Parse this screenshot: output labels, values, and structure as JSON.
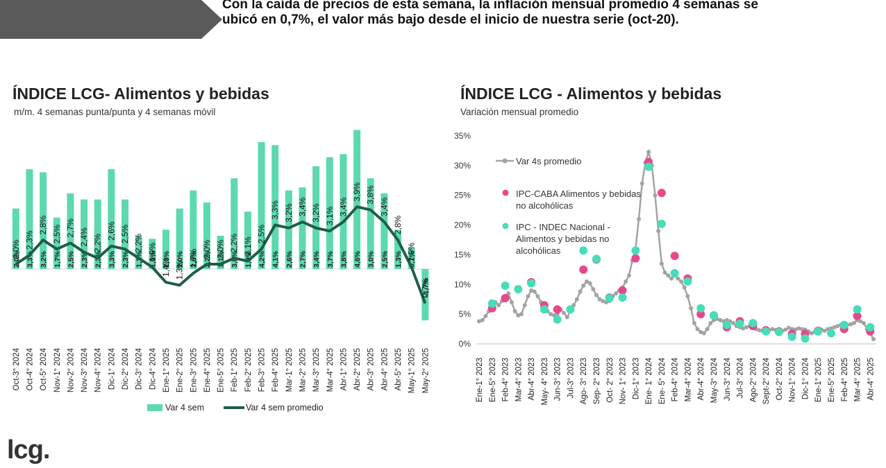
{
  "headline": "Con la caída de precios de esta semana, la inflación mensual promedio 4 semanas se ubicó en 0,7%, el valor más bajo desde el inicio de nuestra serie (oct-20).",
  "logo": "lcg.",
  "colors": {
    "bar": "#5dd9b0",
    "line": "#1e5e46",
    "gray": "#a3a3a3",
    "pink": "#e8488a",
    "teal": "#46ddb8",
    "banner": "#595959"
  },
  "chart_data": [
    {
      "type": "bar",
      "title": "ÍNDICE LCG- Alimentos y bebidas",
      "subtitle": "m/m. 4 semanas punta/punta y 4 semanas móvil",
      "categories": [
        "Oct-3° 2024",
        "Oct-4° 2024",
        "Oct-5° 2024",
        "Nov-1° 2024",
        "Nov-2° 2024",
        "Nov-3° 2024",
        "Nov-4° 2024",
        "Dic-1° 2024",
        "Dic-2° 2024",
        "Dic-3° 2024",
        "Dic-4° 2024",
        "Ene-1° 2025",
        "Ene-2° 2025",
        "Ene-3° 2025",
        "Ene-4° 2025",
        "Ene-5° 2025",
        "Feb-1° 2025",
        "Feb-2° 2025",
        "Feb-3° 2025",
        "Feb-4° 2025",
        "Mar-1° 2025",
        "Mar-2° 2025",
        "Mar-3° 2025",
        "Mar-4° 2025",
        "Abr-1° 2025",
        "Abr-2° 2025",
        "Abr-3° 2025",
        "Abr-4° 2025",
        "Abr-5° 2025",
        "May-1° 2025",
        "May-2° 2025"
      ],
      "series": [
        {
          "name": "Var 4 sem",
          "kind": "bar",
          "values": [
            2.0,
            3.3,
            3.2,
            1.7,
            2.5,
            2.3,
            2.3,
            3.3,
            2.3,
            1.1,
            1.0,
            1.3,
            2.0,
            2.6,
            2.2,
            1.1,
            3.0,
            1.9,
            4.2,
            4.1,
            2.6,
            2.7,
            3.4,
            3.7,
            3.8,
            4.6,
            3.0,
            2.5,
            1.3,
            0.7,
            -1.7
          ],
          "labels": [
            "2,0%",
            "3,3%",
            "3,2%",
            "1,7%",
            "2,5%",
            "2,3%",
            "2,3%",
            "3,3%",
            "2,3%",
            "1,1%",
            "1,0%",
            "1,3%",
            "2,0%",
            "2,6%",
            "2,2%",
            "1,1%",
            "3,0%",
            "1,9%",
            "4,2%",
            "4,1%",
            "2,6%",
            "2,7%",
            "3,4%",
            "3,7%",
            "3,8%",
            "4,6%",
            "3,0%",
            "2,5%",
            "1,3%",
            "0,7%",
            "-1,7%"
          ]
        },
        {
          "name": "Var 4 sem promedio",
          "kind": "line",
          "values": [
            2.0,
            2.3,
            2.8,
            2.5,
            2.7,
            2.4,
            2.2,
            2.6,
            2.5,
            2.2,
            1.9,
            1.4,
            1.3,
            1.7,
            2.0,
            2.0,
            2.2,
            2.1,
            2.5,
            3.3,
            3.2,
            3.4,
            3.2,
            3.1,
            3.4,
            3.9,
            3.8,
            3.4,
            2.8,
            1.9,
            0.7
          ],
          "labels": [
            "2,0%",
            "2,3%",
            "2,8%",
            "2,5%",
            "2,7%",
            "2,4%",
            "2,2%",
            "2,6%",
            "2,5%",
            "2,2%",
            "1,9%",
            "1,4%",
            "1,3%",
            "1,7%",
            "2,0%",
            "2,0%",
            "2,2%",
            "2,1%",
            "2,5%",
            "3,3%",
            "3,2%",
            "3,4%",
            "3,2%",
            "3,1%",
            "3,4%",
            "3,9%",
            "3,8%",
            "3,4%",
            "2,8%",
            "1,9%",
            "0,7%"
          ]
        }
      ],
      "ylim": [
        -2.0,
        5.0
      ],
      "legend_position": "bottom"
    },
    {
      "type": "scatter",
      "title": "ÍNDICE LCG - Alimentos y bebidas",
      "subtitle": "Variación mensual promedio",
      "xlim": [
        0,
        121
      ],
      "x_ticks": [
        {
          "x": 0,
          "label": "Ene-1° 2023"
        },
        {
          "x": 4,
          "label": "Ene-5° 2023"
        },
        {
          "x": 8,
          "label": "Feb-4° 2023"
        },
        {
          "x": 12,
          "label": "Mar-4° 2023"
        },
        {
          "x": 16,
          "label": "Abr-4° 2023"
        },
        {
          "x": 20,
          "label": "May- 4° 2023"
        },
        {
          "x": 24,
          "label": "Jun-3° 2023"
        },
        {
          "x": 28,
          "label": "Jul-3° 2023"
        },
        {
          "x": 32,
          "label": "Ago- 3° 2023"
        },
        {
          "x": 36,
          "label": "Sep- 2° 2023"
        },
        {
          "x": 40,
          "label": "Oct- 2° 2023"
        },
        {
          "x": 44,
          "label": "Nov- 1° 2023"
        },
        {
          "x": 48,
          "label": "Dic-1° 2023"
        },
        {
          "x": 52,
          "label": "Ene- 1° 2024"
        },
        {
          "x": 56,
          "label": "Ene- 5° 2024"
        },
        {
          "x": 60,
          "label": "Feb-4° 2024"
        },
        {
          "x": 64,
          "label": "Mar-4° 2024"
        },
        {
          "x": 68,
          "label": "Abr-4° 2024"
        },
        {
          "x": 72,
          "label": "May-3° 2024"
        },
        {
          "x": 76,
          "label": "Jun-3° 2024"
        },
        {
          "x": 80,
          "label": "Jul-3° 2024"
        },
        {
          "x": 84,
          "label": "Ago-2° 2024"
        },
        {
          "x": 88,
          "label": "Sept-2° 2024"
        },
        {
          "x": 92,
          "label": "Oct-2° 2024"
        },
        {
          "x": 96,
          "label": "Nov-1° 2024"
        },
        {
          "x": 100,
          "label": "Dic-1° 2024"
        },
        {
          "x": 104,
          "label": "Ene-1° 2025"
        },
        {
          "x": 108,
          "label": "Ene-5° 2025"
        },
        {
          "x": 112,
          "label": "Feb-4° 2025"
        },
        {
          "x": 116,
          "label": "Mar-4° 2025"
        },
        {
          "x": 120,
          "label": "Abr-4° 2025"
        }
      ],
      "ylim": [
        0,
        35
      ],
      "y_ticks": [
        0,
        5,
        10,
        15,
        20,
        25,
        30,
        35
      ],
      "y_tick_labels": [
        "0%",
        "5%",
        "10%",
        "15%",
        "20%",
        "25%",
        "30%",
        "35%"
      ],
      "series": [
        {
          "name": "Var 4s promedio",
          "kind": "line",
          "x": [
            0,
            1,
            2,
            3,
            4,
            5,
            6,
            7,
            8,
            9,
            10,
            11,
            12,
            13,
            14,
            15,
            16,
            17,
            18,
            19,
            20,
            21,
            22,
            23,
            24,
            25,
            26,
            27,
            28,
            29,
            30,
            31,
            32,
            33,
            34,
            35,
            36,
            37,
            38,
            39,
            40,
            41,
            42,
            43,
            44,
            45,
            46,
            47,
            48,
            49,
            50,
            51,
            52,
            53,
            54,
            55,
            56,
            57,
            58,
            59,
            60,
            61,
            62,
            63,
            64,
            65,
            66,
            67,
            68,
            69,
            70,
            71,
            72,
            73,
            74,
            75,
            76,
            77,
            78,
            79,
            80,
            81,
            82,
            83,
            84,
            85,
            86,
            87,
            88,
            89,
            90,
            91,
            92,
            93,
            94,
            95,
            96,
            97,
            98,
            99,
            100,
            101,
            102,
            103,
            104,
            105,
            106,
            107,
            108,
            109,
            110,
            111,
            112,
            113,
            114,
            115,
            116,
            117,
            118,
            119,
            120,
            121
          ],
          "y": [
            3.8,
            4.0,
            4.7,
            5.5,
            6.5,
            7.0,
            6.5,
            7.2,
            7.8,
            8.5,
            7.0,
            5.5,
            4.8,
            5.0,
            6.5,
            8.0,
            9.0,
            8.8,
            8.0,
            7.0,
            6.0,
            5.5,
            5.0,
            4.8,
            5.0,
            5.8,
            5.2,
            4.5,
            5.5,
            6.5,
            7.5,
            8.8,
            9.8,
            10.5,
            10.2,
            9.2,
            8.2,
            7.5,
            7.2,
            7.0,
            7.2,
            8.0,
            8.5,
            9.0,
            9.5,
            10.5,
            11.5,
            14.0,
            16.0,
            21.0,
            27.0,
            30.5,
            32.3,
            30.0,
            25.0,
            19.0,
            13.5,
            12.0,
            11.5,
            11.0,
            11.5,
            11.0,
            10.5,
            9.5,
            8.0,
            6.0,
            3.5,
            2.5,
            2.0,
            1.8,
            2.5,
            3.5,
            4.0,
            4.2,
            4.0,
            3.8,
            4.0,
            3.8,
            3.5,
            3.0,
            2.8,
            2.6,
            2.8,
            3.0,
            2.7,
            2.5,
            2.3,
            2.2,
            2.5,
            2.3,
            2.5,
            2.3,
            2.5,
            2.2,
            2.4,
            2.7,
            2.5,
            2.4,
            2.6,
            2.5,
            2.4,
            2.1,
            1.8,
            2.0,
            2.3,
            2.4,
            2.2,
            2.5,
            2.6,
            2.8,
            3.0,
            3.2,
            3.0,
            3.2,
            3.3,
            3.5,
            4.0,
            3.8,
            3.5,
            2.5,
            1.8,
            0.8
          ]
        },
        {
          "name": "IPC-CABA Alimentos y bebidas no alcohólicas",
          "kind": "points",
          "x": [
            4,
            8,
            16,
            20,
            24,
            32,
            36,
            40,
            44,
            48,
            52,
            56,
            60,
            64,
            68,
            72,
            76,
            80,
            84,
            88,
            92,
            96,
            100,
            104,
            112,
            116,
            120
          ],
          "y": [
            6.0,
            7.7,
            10.4,
            6.5,
            5.8,
            12.5,
            14.2,
            7.8,
            9.0,
            14.4,
            30.6,
            25.4,
            14.8,
            11.0,
            5.0,
            4.8,
            2.8,
            3.8,
            3.0,
            2.3,
            2.1,
            1.7,
            1.7,
            2.2,
            2.5,
            4.7,
            2.1
          ]
        },
        {
          "name": "IPC - INDEC Nacional - Alimentos y bebidas no alcohólicas",
          "kind": "points",
          "x": [
            4,
            8,
            12,
            16,
            20,
            24,
            28,
            32,
            36,
            40,
            44,
            48,
            52,
            56,
            60,
            64,
            68,
            72,
            76,
            80,
            84,
            88,
            92,
            96,
            100,
            104,
            108,
            112,
            116,
            120
          ],
          "y": [
            6.8,
            9.8,
            9.2,
            10.2,
            5.8,
            4.1,
            5.8,
            15.7,
            14.3,
            7.7,
            7.8,
            15.7,
            29.8,
            20.2,
            11.9,
            10.5,
            6.0,
            4.8,
            3.2,
            3.4,
            3.5,
            2.1,
            2.0,
            1.2,
            0.9,
            2.1,
            1.8,
            3.2,
            5.8,
            2.8
          ]
        }
      ],
      "legend_position": "top-left"
    }
  ]
}
